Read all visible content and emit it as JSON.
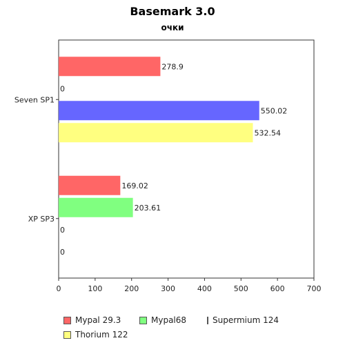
{
  "chart_data": {
    "type": "bar",
    "orientation": "horizontal",
    "title": "Basemark 3.0",
    "subtitle": "очки",
    "categories": [
      "Seven SP1",
      "XP SP3"
    ],
    "series": [
      {
        "name": "Mypal 29.3",
        "color": "#ff6666",
        "values": [
          278.9,
          169.02
        ],
        "labels": [
          "278.9",
          "169.02"
        ]
      },
      {
        "name": "Mypal68",
        "color": "#80ff80",
        "values": [
          0,
          203.61
        ],
        "labels": [
          "0",
          "203.61"
        ]
      },
      {
        "name": "Supermium 124",
        "color": "#6666ff",
        "values": [
          550.02,
          0
        ],
        "labels": [
          "550.02",
          "0"
        ]
      },
      {
        "name": "Thorium 122",
        "color": "#ffff80",
        "values": [
          532.54,
          0
        ],
        "labels": [
          "532.54",
          "0"
        ]
      }
    ],
    "xlim": [
      0,
      700
    ],
    "xticks": [
      "0",
      "100",
      "200",
      "300",
      "400",
      "500",
      "600",
      "700"
    ],
    "grid": false,
    "legend_position": "bottom"
  }
}
